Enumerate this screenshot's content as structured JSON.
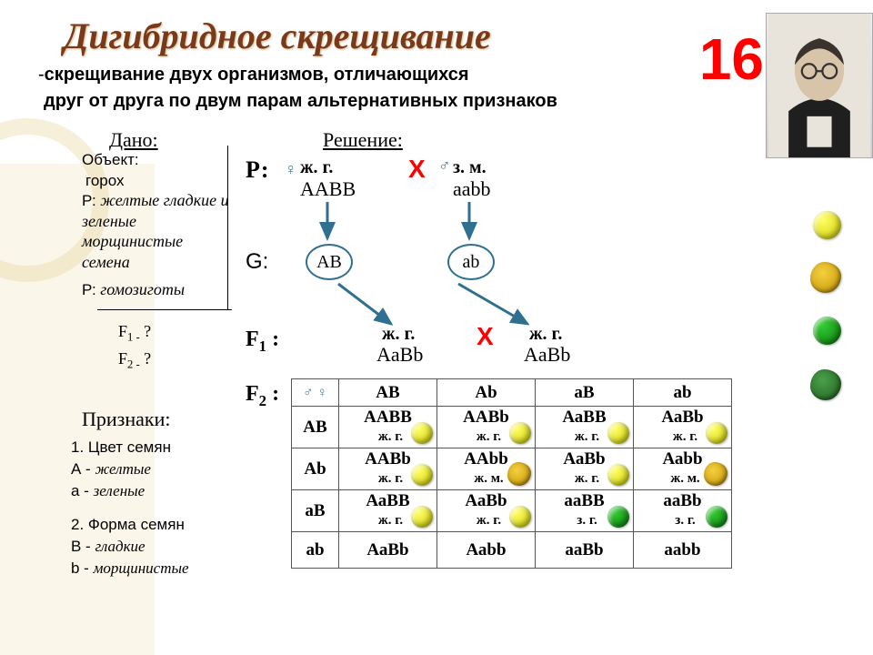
{
  "title": "Дигибридное скрещивание",
  "slide_number": "16",
  "subtitle_prefix": "-",
  "subtitle_l1": "скрещивание двух организмов, отличающихся",
  "subtitle_l2": "друг от друга по двум парам альтернативных признаков",
  "given_header": "Дано:",
  "solution_header": "Решение:",
  "given": {
    "object_label": "Объект:",
    "object_value": "горох",
    "p_label": "Р:",
    "p_desc": "желтые гладкие и зеленые морщинистые семена",
    "p_note_label": "Р:",
    "p_note": "гомозиготы"
  },
  "q1": "F1 - ?",
  "q2": "F2 - ?",
  "traits_header": "Признаки:",
  "trait1_h": "1. Цвет семян",
  "trait1_A": "А - желтые",
  "trait1_a": "а - зеленые",
  "trait2_h": "2. Форма  семян",
  "trait2_B": "В - гладкие",
  "trait2_b": "b - морщинистые",
  "labels": {
    "P": "Р:",
    "G": "G:",
    "F1": "F1 :",
    "F2": "F2 :"
  },
  "P": {
    "female_sign": "♀",
    "male_sign": "♂",
    "mom_pheno": "ж. г.",
    "mom_geno": "ААВВ",
    "dad_pheno": "з. м.",
    "dad_geno": "ааbb",
    "cross": "Х"
  },
  "G": {
    "g1": "АВ",
    "g2": "ab"
  },
  "F1": {
    "p1": "ж. г.",
    "g1": "АaВb",
    "p2": "ж. г.",
    "g2": "АaВb",
    "cross": "Х"
  },
  "punnett": {
    "corner": "♂\\♀",
    "cols": [
      "АВ",
      "Аb",
      "аВ",
      "аb"
    ],
    "rows": [
      "АВ",
      "Аb",
      "аВ",
      "аb"
    ],
    "cells": [
      [
        {
          "g": "ААВВ",
          "p": "ж. г.",
          "seed": "ys"
        },
        {
          "g": "ААВb",
          "p": "ж. г.",
          "seed": "ys"
        },
        {
          "g": "АаВВ",
          "p": "ж. г.",
          "seed": "ys"
        },
        {
          "g": "АаВb",
          "p": "ж. г.",
          "seed": "ys"
        }
      ],
      [
        {
          "g": "ААВb",
          "p": "ж. г.",
          "seed": "ys"
        },
        {
          "g": "ААbb",
          "p": "ж. м.",
          "seed": "yw"
        },
        {
          "g": "АаВb",
          "p": "ж. г.",
          "seed": "ys"
        },
        {
          "g": "Ааbb",
          "p": "ж. м.",
          "seed": "yw"
        }
      ],
      [
        {
          "g": "АаВВ",
          "p": "ж. г.",
          "seed": "ys"
        },
        {
          "g": "АаВb",
          "p": "ж. г.",
          "seed": "ys"
        },
        {
          "g": "ааВВ",
          "p": "з. г.",
          "seed": "gs"
        },
        {
          "g": "ааВb",
          "p": "з. г.",
          "seed": "gs"
        }
      ],
      [
        {
          "g": "АаВb",
          "p": "",
          "seed": ""
        },
        {
          "g": "Ааbb",
          "p": "",
          "seed": ""
        },
        {
          "g": "ааВb",
          "p": "",
          "seed": ""
        },
        {
          "g": "ааbb",
          "p": "",
          "seed": ""
        }
      ]
    ]
  },
  "seed_styles": {
    "ys": {
      "class": "ball yellow",
      "size": 24
    },
    "yw": {
      "class": "ball wrinkled w-yellow",
      "size": 26
    },
    "gs": {
      "class": "ball green",
      "size": 24
    },
    "gw": {
      "class": "ball wrinkled w-green",
      "size": 26
    }
  },
  "legend_seeds": [
    "ys",
    "yw",
    "gs",
    "gw"
  ],
  "colors": {
    "title": "#7a3a1a",
    "cross": "#ff0000",
    "arrow": "#2f6f8f"
  }
}
